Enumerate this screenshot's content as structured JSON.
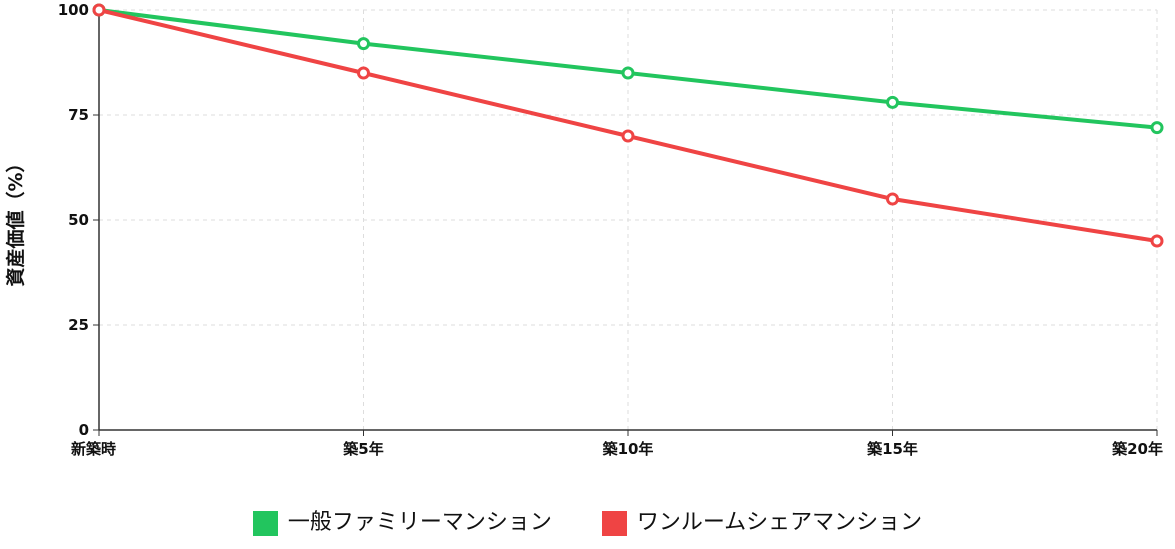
{
  "chart_data": {
    "type": "line",
    "title": "",
    "xlabel": "",
    "ylabel": "資産価値（%）",
    "categories": [
      "新築時",
      "築5年",
      "築10年",
      "築15年",
      "築20年"
    ],
    "ylim": [
      0,
      100
    ],
    "yticks": [
      "0",
      "25",
      "50",
      "75",
      "100"
    ],
    "ytick_values": [
      0,
      25,
      50,
      75,
      100
    ],
    "grid": true,
    "legend_position": "bottom",
    "series": [
      {
        "name": "一般ファミリーマンション",
        "color": "#22c55e",
        "values": [
          100,
          92,
          85,
          78,
          72
        ]
      },
      {
        "name": "ワンルームシェアマンション",
        "color": "#ef4444",
        "values": [
          100,
          85,
          70,
          55,
          45
        ]
      }
    ]
  }
}
